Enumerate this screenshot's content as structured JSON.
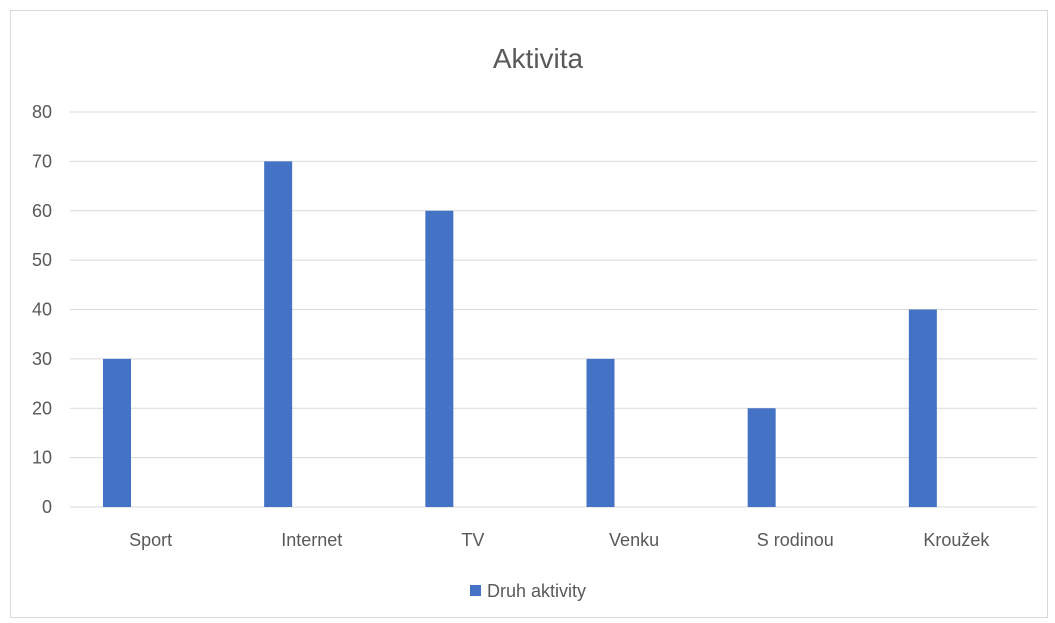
{
  "chart_data": {
    "type": "bar",
    "title": "Aktivita",
    "xlabel": "",
    "ylabel": "",
    "categories": [
      "Sport",
      "Internet",
      "TV",
      "Venku",
      "S rodinou",
      "Kroužek"
    ],
    "series": [
      {
        "name": "Druh aktivity",
        "values": [
          30,
          70,
          60,
          30,
          20,
          40
        ],
        "color": "#4472c4"
      }
    ],
    "ylim": [
      0,
      80
    ],
    "yticks": [
      0,
      10,
      20,
      30,
      40,
      50,
      60,
      70,
      80
    ],
    "grid": true,
    "legend_position": "bottom"
  }
}
